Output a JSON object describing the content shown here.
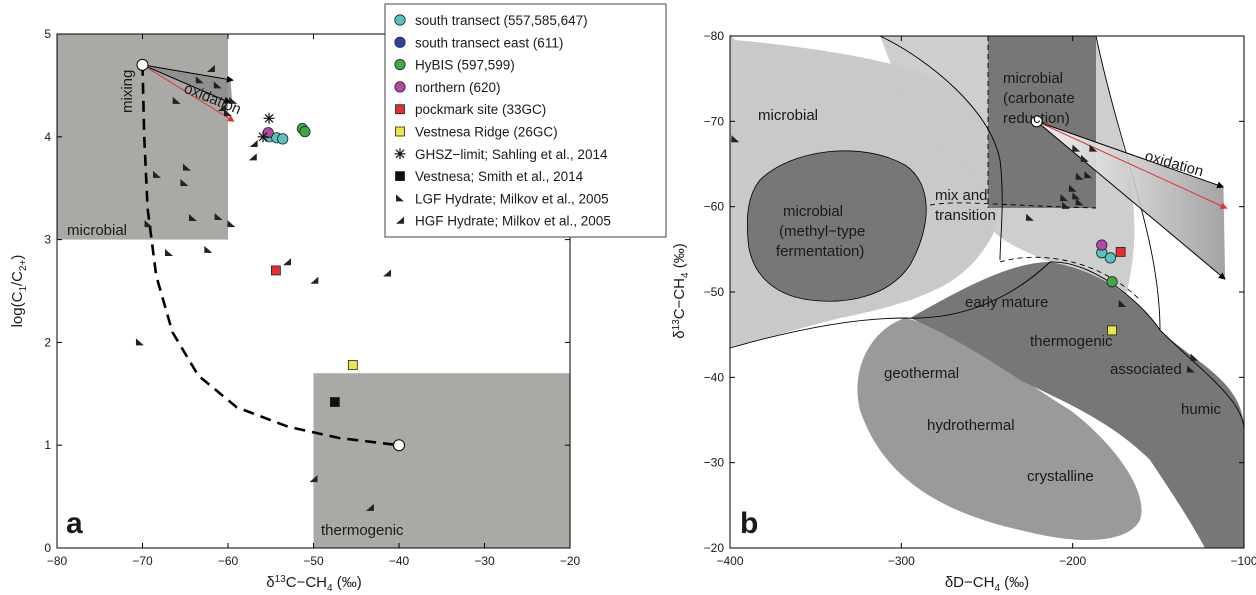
{
  "chart_data": [
    {
      "type": "scatter",
      "panel_label": "a",
      "xlabel": "δ13C−CH4 (‰)",
      "ylabel": "log(C1/C2+)",
      "xlim": [
        -80,
        -20
      ],
      "ylim": [
        0,
        5
      ],
      "x_ticks": [
        "−80",
        "−70",
        "−60",
        "−50",
        "−40",
        "−30",
        "−20"
      ],
      "y_ticks": [
        "0",
        "1",
        "2",
        "3",
        "4",
        "5"
      ],
      "regions": [
        {
          "label": "microbial",
          "x": [
            -80,
            -60
          ],
          "y": [
            3,
            5
          ]
        },
        {
          "label": "thermogenic",
          "x": [
            -50,
            -20
          ],
          "y": [
            0,
            1.7
          ]
        }
      ],
      "annotations": [
        "mixing",
        "oxidation"
      ],
      "series": [
        {
          "name": "south transect (557,585,647)",
          "marker": "circle",
          "color": "#57c3c0",
          "points": [
            [
              -55.2,
              4.0
            ],
            [
              -54.3,
              3.99
            ],
            [
              -53.6,
              3.98
            ]
          ]
        },
        {
          "name": "HyBIS (597,599)",
          "marker": "circle",
          "color": "#3ea845",
          "points": [
            [
              -51.3,
              4.08
            ],
            [
              -51.0,
              4.05
            ]
          ]
        },
        {
          "name": "northern (620)",
          "marker": "circle",
          "color": "#b04aa4",
          "points": [
            [
              -55.3,
              4.04
            ]
          ]
        },
        {
          "name": "pockmark site (33GC)",
          "marker": "square",
          "color": "#e03030",
          "points": [
            [
              -54.4,
              2.7
            ]
          ]
        },
        {
          "name": "Vestnesa Ridge (26GC)",
          "marker": "square",
          "color": "#e8e84a",
          "points": [
            [
              -45.4,
              1.78
            ]
          ]
        },
        {
          "name": "GHSZ−limit; Sahling et al., 2014",
          "marker": "asterisk",
          "color": "#111111",
          "points": [
            [
              -55.2,
              4.18
            ],
            [
              -55.9,
              4.0
            ]
          ]
        },
        {
          "name": "Vestnesa; Smith et al., 2014",
          "marker": "square",
          "color": "#111111",
          "points": [
            [
              -47.5,
              1.42
            ]
          ]
        },
        {
          "name": "LGF Hydrate; Milkov et al., 2005",
          "marker": "tri-down",
          "color": "#222222",
          "points": [
            [
              -70.3,
              2.0
            ],
            [
              -68.3,
              3.63
            ],
            [
              -66.9,
              2.87
            ],
            [
              -66.0,
              4.35
            ],
            [
              -65.1,
              3.55
            ],
            [
              -64.8,
              3.7
            ],
            [
              -64.1,
              3.21
            ],
            [
              -63.3,
              4.55
            ],
            [
              -62.3,
              2.9
            ],
            [
              -61.2,
              4.5
            ],
            [
              -61.1,
              3.22
            ],
            [
              -59.6,
              3.15
            ],
            [
              -69.3,
              3.15
            ],
            [
              -59.4,
              4.35
            ],
            [
              -60.0,
              4.23
            ]
          ]
        },
        {
          "name": "HGF Hydrate; Milkov et al., 2005",
          "marker": "tri-up",
          "color": "#222222",
          "points": [
            [
              -62.0,
              4.66
            ],
            [
              -57.1,
              3.8
            ],
            [
              -53.1,
              2.78
            ],
            [
              -49.9,
              2.6
            ],
            [
              -41.4,
              2.67
            ],
            [
              -50.0,
              0.67
            ],
            [
              -43.4,
              0.39
            ],
            [
              -60.7,
              4.28
            ],
            [
              -57.0,
              3.93
            ]
          ]
        }
      ],
      "endmembers": [
        [
          -70,
          4.7
        ],
        [
          -40,
          1.0
        ]
      ]
    },
    {
      "type": "scatter",
      "panel_label": "b",
      "xlabel": "δD−CH4 (‰)",
      "ylabel": "δ13C−CH4 (‰)",
      "xlim": [
        -400,
        -100
      ],
      "ylim": [
        -80,
        -20
      ],
      "x_ticks": [
        "−400",
        "−300",
        "−200",
        "−100"
      ],
      "y_ticks": [
        "−80",
        "−70",
        "−60",
        "−50",
        "−40",
        "−30",
        "−20"
      ],
      "regions": [
        {
          "label": "microbial"
        },
        {
          "label": "microbial (carbonate reduction)"
        },
        {
          "label": "microbial (methyl−type fermentation)"
        },
        {
          "label": "mix and transition"
        },
        {
          "label": "early mature"
        },
        {
          "label": "thermogenic"
        },
        {
          "label": "associated"
        },
        {
          "label": "humic"
        },
        {
          "label": "geothermal"
        },
        {
          "label": "hydrothermal"
        },
        {
          "label": "crystalline"
        }
      ],
      "annotations": [
        "oxidation"
      ],
      "series": [
        {
          "name": "south transect",
          "marker": "circle",
          "color": "#57c3c0",
          "points": [
            [
              -183,
              -54.6
            ],
            [
              -178,
              -54.0
            ]
          ]
        },
        {
          "name": "HyBIS",
          "marker": "circle",
          "color": "#3ea845",
          "points": [
            [
              -177,
              -51.2
            ]
          ]
        },
        {
          "name": "northern",
          "marker": "circle",
          "color": "#b04aa4",
          "points": [
            [
              -183,
              -55.5
            ]
          ]
        },
        {
          "name": "pockmark site",
          "marker": "square",
          "color": "#e03030",
          "points": [
            [
              -172,
              -54.7
            ]
          ]
        },
        {
          "name": "Vestnesa Ridge",
          "marker": "square",
          "color": "#e8e84a",
          "points": [
            [
              -177,
              -45.5
            ]
          ]
        },
        {
          "name": "hydrates",
          "marker": "triangle",
          "color": "#222222",
          "points": [
            [
              -198,
              -66.8
            ],
            [
              -193,
              -65.6
            ],
            [
              -196,
              -63.5
            ],
            [
              -200,
              -62.1
            ],
            [
              -198,
              -61.2
            ],
            [
              -191,
              -63.7
            ],
            [
              -205,
              -61.0
            ],
            [
              -196,
              -60.5
            ],
            [
              -204,
              -60.1
            ],
            [
              -225,
              -58.7
            ],
            [
              -171,
              -48.6
            ],
            [
              -129,
              -42.3
            ],
            [
              -131,
              -40.9
            ],
            [
              -397,
              -67.9
            ],
            [
              -188,
              -66.8
            ]
          ]
        }
      ],
      "endmembers": [
        [
          -221,
          -70
        ]
      ]
    }
  ],
  "legend_items": [
    {
      "label": "south transect (557,585,647)"
    },
    {
      "label": "south transect east (611)"
    },
    {
      "label": "HyBIS (597,599)"
    },
    {
      "label": "northern (620)"
    },
    {
      "label": "pockmark site (33GC)"
    },
    {
      "label": "Vestnesa Ridge (26GC)"
    },
    {
      "label": "GHSZ−limit; Sahling et al., 2014"
    },
    {
      "label": "Vestnesa; Smith et al., 2014"
    },
    {
      "label": "LGF Hydrate; Milkov et al., 2005"
    },
    {
      "label": "HGF Hydrate; Milkov et al., 2005"
    }
  ],
  "colors": {
    "south_transect": "#57c3c0",
    "south_transect_east": "#2f3fa0",
    "hybis": "#3ea845",
    "northern": "#b04aa4",
    "pockmark": "#e03030",
    "vestnesa_ridge": "#e8e84a",
    "region_gray": "#a9aaa5",
    "light_gray": "#c9c9c9",
    "mid_gray": "#9a9a9a",
    "dark_gray": "#777777"
  }
}
